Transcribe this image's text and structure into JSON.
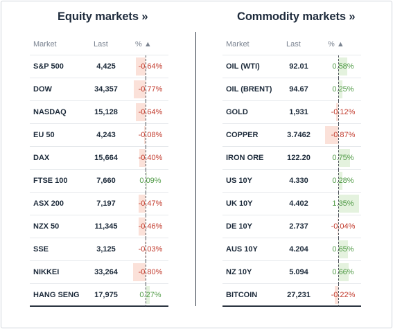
{
  "equity": {
    "title": "Equity markets »",
    "headers": {
      "market": "Market",
      "last": "Last",
      "pct": "% ▲"
    },
    "rows": [
      {
        "market": "S&P 500",
        "last": "4,425",
        "change": "-0.64%",
        "change_value": -0.64
      },
      {
        "market": "DOW",
        "last": "34,357",
        "change": "-0.77%",
        "change_value": -0.77
      },
      {
        "market": "NASDAQ",
        "last": "15,128",
        "change": "-0.64%",
        "change_value": -0.64
      },
      {
        "market": "EU 50",
        "last": "4,243",
        "change": "-0.08%",
        "change_value": -0.08
      },
      {
        "market": "DAX",
        "last": "15,664",
        "change": "-0.40%",
        "change_value": -0.4
      },
      {
        "market": "FTSE 100",
        "last": "7,660",
        "change": "0.09%",
        "change_value": 0.09
      },
      {
        "market": "ASX 200",
        "last": "7,197",
        "change": "-0.47%",
        "change_value": -0.47
      },
      {
        "market": "NZX 50",
        "last": "11,345",
        "change": "-0.46%",
        "change_value": -0.46
      },
      {
        "market": "SSE",
        "last": "3,125",
        "change": "-0.03%",
        "change_value": -0.03
      },
      {
        "market": "NIKKEI",
        "last": "33,264",
        "change": "-0.80%",
        "change_value": -0.8
      },
      {
        "market": "HANG SENG",
        "last": "17,975",
        "change": "0.27%",
        "change_value": 0.27
      }
    ]
  },
  "commodity": {
    "title": "Commodity markets »",
    "headers": {
      "market": "Market",
      "last": "Last",
      "pct": "% ▲"
    },
    "rows": [
      {
        "market": "OIL (WTI)",
        "last": "92.01",
        "change": "0.58%",
        "change_value": 0.58
      },
      {
        "market": "OIL (BRENT)",
        "last": "94.67",
        "change": "0.25%",
        "change_value": 0.25
      },
      {
        "market": "GOLD",
        "last": "1,931",
        "change": "-0.12%",
        "change_value": -0.12
      },
      {
        "market": "COPPER",
        "last": "3.7462",
        "change": "-0.87%",
        "change_value": -0.87
      },
      {
        "market": "IRON ORE",
        "last": "122.20",
        "change": "0.75%",
        "change_value": 0.75
      },
      {
        "market": "US 10Y",
        "last": "4.330",
        "change": "0.28%",
        "change_value": 0.28
      },
      {
        "market": "UK 10Y",
        "last": "4.402",
        "change": "1.35%",
        "change_value": 1.35
      },
      {
        "market": "DE 10Y",
        "last": "2.737",
        "change": "-0.04%",
        "change_value": -0.04
      },
      {
        "market": "AUS 10Y",
        "last": "4.204",
        "change": "0.65%",
        "change_value": 0.65
      },
      {
        "market": "NZ 10Y",
        "last": "5.094",
        "change": "0.66%",
        "change_value": 0.66
      },
      {
        "market": "BITCOIN",
        "last": "27,231",
        "change": "-0.22%",
        "change_value": -0.22
      }
    ]
  },
  "colors": {
    "negative_text": "#c23a2c",
    "positive_text": "#4f9a45",
    "negative_bar": "#fbe1d9",
    "positive_bar": "#e4f2de"
  }
}
